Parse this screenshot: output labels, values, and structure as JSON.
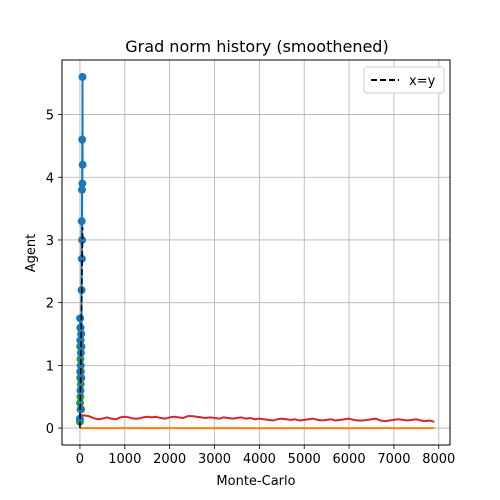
{
  "chart_data": {
    "type": "line",
    "title": "Grad norm history (smoothened)",
    "xlabel": "Monte-Carlo",
    "ylabel": "Agent",
    "xlim": [
      -400,
      8250
    ],
    "ylim": [
      -0.27,
      5.87
    ],
    "xticks": [
      0,
      1000,
      2000,
      3000,
      4000,
      5000,
      6000,
      7000,
      8000
    ],
    "yticks": [
      0,
      1,
      2,
      3,
      4,
      5
    ],
    "grid": true,
    "legend": {
      "position": "top-right",
      "entries": [
        {
          "label": "x=y",
          "style": "dashed",
          "color": "#000000"
        }
      ]
    },
    "series": [
      {
        "kind": "line",
        "color": "#d62728",
        "x": [
          0,
          100,
          200,
          300,
          400,
          500,
          600,
          700,
          800,
          900,
          1000,
          1100,
          1200,
          1300,
          1400,
          1500,
          1600,
          1700,
          1800,
          1900,
          2000,
          2100,
          2200,
          2300,
          2400,
          2500,
          2600,
          2700,
          2800,
          2900,
          3000,
          3100,
          3200,
          3300,
          3400,
          3500,
          3600,
          3700,
          3800,
          3900,
          4000,
          4100,
          4200,
          4300,
          4400,
          4500,
          4600,
          4700,
          4800,
          4900,
          5000,
          5100,
          5200,
          5300,
          5400,
          5500,
          5600,
          5700,
          5800,
          5900,
          6000,
          6100,
          6200,
          6300,
          6400,
          6500,
          6600,
          6700,
          6800,
          6900,
          7000,
          7100,
          7200,
          7300,
          7400,
          7500,
          7600,
          7700,
          7800,
          7900
        ],
        "y": [
          0.21,
          0.2,
          0.19,
          0.16,
          0.14,
          0.15,
          0.17,
          0.15,
          0.14,
          0.17,
          0.18,
          0.17,
          0.15,
          0.15,
          0.17,
          0.18,
          0.17,
          0.18,
          0.16,
          0.15,
          0.17,
          0.18,
          0.17,
          0.16,
          0.19,
          0.19,
          0.18,
          0.17,
          0.16,
          0.17,
          0.16,
          0.15,
          0.17,
          0.16,
          0.15,
          0.16,
          0.17,
          0.15,
          0.16,
          0.14,
          0.15,
          0.14,
          0.13,
          0.12,
          0.14,
          0.15,
          0.14,
          0.13,
          0.14,
          0.12,
          0.13,
          0.14,
          0.15,
          0.13,
          0.12,
          0.13,
          0.14,
          0.12,
          0.13,
          0.14,
          0.15,
          0.13,
          0.12,
          0.12,
          0.13,
          0.14,
          0.15,
          0.12,
          0.11,
          0.12,
          0.13,
          0.14,
          0.13,
          0.12,
          0.13,
          0.14,
          0.12,
          0.11,
          0.12,
          0.1
        ]
      },
      {
        "kind": "line",
        "color": "#ff7f0e",
        "x": [
          0,
          7900
        ],
        "y": [
          0.0,
          0.0
        ]
      },
      {
        "kind": "line-with-markers",
        "color": "#2ca02c",
        "x": [
          0,
          2,
          4,
          6,
          8,
          10,
          12,
          14,
          16,
          18,
          20
        ],
        "y": [
          0.1,
          0.4,
          1.3,
          0.8,
          1.6,
          0.5,
          1.1,
          0.3,
          1.4,
          0.7,
          0.9
        ]
      },
      {
        "kind": "line-with-markers",
        "color": "#1f77b4",
        "x": [
          0,
          3,
          6,
          9,
          12,
          15,
          18,
          21,
          24,
          27,
          30,
          33,
          36,
          39,
          42,
          45,
          48,
          51,
          54,
          57,
          60
        ],
        "y": [
          0.15,
          1.75,
          0.9,
          1.4,
          0.6,
          1.6,
          1.0,
          1.2,
          0.3,
          1.5,
          0.8,
          1.3,
          2.2,
          3.3,
          2.7,
          3.8,
          3.0,
          4.6,
          3.9,
          5.6,
          4.2
        ]
      },
      {
        "kind": "line",
        "name": "x=y",
        "color": "#000000",
        "dashed": true,
        "x": [
          0,
          60
        ],
        "y": [
          0,
          3.2
        ]
      }
    ]
  }
}
